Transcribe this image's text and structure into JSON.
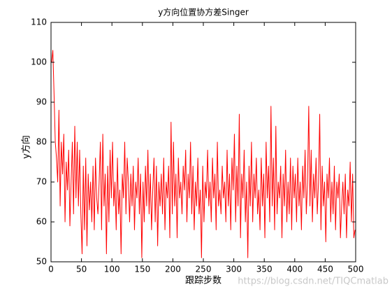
{
  "chart_data": {
    "type": "line",
    "title": "y方向位置协方差Singer",
    "x_label": "跟踪步数",
    "y_label": "y方向",
    "watermark": "https://blog.csdn.net/TIQCmatlab",
    "xlim": [
      0,
      500
    ],
    "ylim": [
      50,
      110
    ],
    "xticks": [
      0,
      50,
      100,
      150,
      200,
      250,
      300,
      350,
      400,
      450,
      500
    ],
    "yticks": [
      50,
      60,
      70,
      80,
      90,
      100,
      110
    ],
    "x": [
      1,
      3,
      5,
      7,
      9,
      11,
      13,
      15,
      17,
      19,
      21,
      23,
      25,
      27,
      29,
      31,
      33,
      35,
      37,
      39,
      41,
      43,
      45,
      47,
      49,
      51,
      53,
      55,
      57,
      59,
      61,
      63,
      65,
      67,
      69,
      71,
      73,
      75,
      77,
      79,
      81,
      83,
      85,
      87,
      89,
      91,
      93,
      95,
      97,
      99,
      101,
      103,
      105,
      107,
      109,
      111,
      113,
      115,
      117,
      119,
      121,
      123,
      125,
      127,
      129,
      131,
      133,
      135,
      137,
      139,
      141,
      143,
      145,
      147,
      149,
      151,
      153,
      155,
      157,
      159,
      161,
      163,
      165,
      167,
      169,
      171,
      173,
      175,
      177,
      179,
      181,
      183,
      185,
      187,
      189,
      191,
      193,
      195,
      197,
      199,
      201,
      203,
      205,
      207,
      209,
      211,
      213,
      215,
      217,
      219,
      221,
      223,
      225,
      227,
      229,
      231,
      233,
      235,
      237,
      239,
      241,
      243,
      245,
      247,
      249,
      251,
      253,
      255,
      257,
      259,
      261,
      263,
      265,
      267,
      269,
      271,
      273,
      275,
      277,
      279,
      281,
      283,
      285,
      287,
      289,
      291,
      293,
      295,
      297,
      299,
      301,
      303,
      305,
      307,
      309,
      311,
      313,
      315,
      317,
      319,
      321,
      323,
      325,
      327,
      329,
      331,
      333,
      335,
      337,
      339,
      341,
      343,
      345,
      347,
      349,
      351,
      353,
      355,
      357,
      359,
      361,
      363,
      365,
      367,
      369,
      371,
      373,
      375,
      377,
      379,
      381,
      383,
      385,
      387,
      389,
      391,
      393,
      395,
      397,
      399,
      401,
      403,
      405,
      407,
      409,
      411,
      413,
      415,
      417,
      419,
      421,
      423,
      425,
      427,
      429,
      431,
      433,
      435,
      437,
      439,
      441,
      443,
      445,
      447,
      449,
      451,
      453,
      455,
      457,
      459,
      461,
      463,
      465,
      467,
      469,
      471,
      473,
      475,
      477,
      479,
      481,
      483,
      485,
      487,
      489,
      491,
      493,
      495,
      497,
      499
    ],
    "series": [
      {
        "color": "#ff0000",
        "values": [
          100,
          103,
          92,
          80,
          76,
          70,
          88,
          64,
          80,
          72,
          82,
          60,
          75,
          68,
          78,
          59,
          70,
          80,
          62,
          84,
          66,
          80,
          64,
          78,
          62,
          52,
          74,
          58,
          76,
          54,
          72,
          63,
          70,
          60,
          74,
          58,
          76,
          66,
          62,
          70,
          80,
          58,
          82,
          64,
          72,
          52,
          74,
          60,
          78,
          66,
          80,
          64,
          70,
          58,
          76,
          62,
          68,
          52,
          72,
          66,
          80,
          62,
          76,
          70,
          60,
          72,
          64,
          74,
          58,
          70,
          66,
          76,
          62,
          72,
          51,
          70,
          60,
          74,
          64,
          78,
          62,
          72,
          58,
          68,
          76,
          60,
          74,
          54,
          70,
          64,
          72,
          62,
          76,
          58,
          70,
          66,
          74,
          56,
          85,
          62,
          80,
          64,
          72,
          56,
          76,
          66,
          70,
          62,
          74,
          68,
          78,
          60,
          72,
          66,
          80,
          62,
          74,
          58,
          70,
          64,
          76,
          62,
          68,
          51,
          74,
          60,
          70,
          66,
          78,
          64,
          70,
          60,
          76,
          66,
          72,
          58,
          80,
          64,
          68,
          62,
          74,
          66,
          70,
          60,
          78,
          64,
          72,
          58,
          76,
          68,
          82,
          60,
          74,
          64,
          87,
          56,
          72,
          66,
          78,
          60,
          70,
          51,
          74,
          64,
          80,
          60,
          72,
          66,
          76,
          62,
          68,
          58,
          76,
          64,
          72,
          56,
          80,
          66,
          74,
          60,
          89,
          64,
          76,
          58,
          84,
          62,
          70,
          66,
          74,
          56,
          72,
          64,
          78,
          60,
          70,
          62,
          76,
          58,
          74,
          66,
          72,
          60,
          76,
          64,
          70,
          58,
          74,
          66,
          78,
          62,
          70,
          89,
          64,
          78,
          60,
          72,
          66,
          76,
          62,
          70,
          87,
          58,
          74,
          64,
          70,
          55,
          72,
          66,
          76,
          60,
          70,
          62,
          74,
          58,
          70,
          66,
          72,
          56,
          64,
          70,
          62,
          72,
          56,
          68,
          64,
          75,
          60,
          72,
          56,
          58
        ]
      }
    ]
  }
}
